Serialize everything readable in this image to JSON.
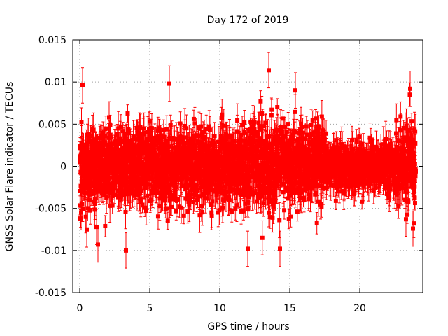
{
  "chart_data": {
    "type": "scatter",
    "title": "Day 172 of 2019",
    "xlabel": "GPS time / hours",
    "ylabel": "GNSS Solar Flare indicator / TECUs",
    "xlim": [
      -0.5,
      24.5
    ],
    "ylim": [
      -0.015,
      0.015
    ],
    "x_ticks": [
      0,
      5,
      10,
      15,
      20
    ],
    "x_tick_labels": [
      "0",
      "5",
      "10",
      "15",
      "20"
    ],
    "y_ticks": [
      -0.015,
      -0.01,
      -0.005,
      0,
      0.005,
      0.01,
      0.015
    ],
    "y_tick_labels": [
      "-0.015",
      "-0.01",
      "-0.005",
      "0",
      "0.005",
      "0.01",
      "0.015"
    ],
    "grid": true,
    "series": [
      {
        "name": "solar flare indicator",
        "color": "#ff0000",
        "marker": "square",
        "error_bars": true,
        "x_range": [
          0,
          24
        ],
        "sample_interval_hours": 0.00833,
        "typical_abs_value": 0.003,
        "typical_error": 0.0015,
        "notable_points": [
          {
            "x": 0.2,
            "y": 0.0096
          },
          {
            "x": 0.5,
            "y": -0.0075
          },
          {
            "x": 1.2,
            "y": -0.0072
          },
          {
            "x": 1.3,
            "y": -0.0093
          },
          {
            "x": 3.3,
            "y": -0.01
          },
          {
            "x": 6.4,
            "y": 0.0098
          },
          {
            "x": 13.5,
            "y": 0.0114
          },
          {
            "x": 12.0,
            "y": -0.0098
          },
          {
            "x": 14.3,
            "y": -0.0098
          },
          {
            "x": 15.4,
            "y": 0.009
          },
          {
            "x": 23.8,
            "y": -0.0074
          },
          {
            "x": 23.6,
            "y": 0.0092
          }
        ]
      }
    ]
  }
}
